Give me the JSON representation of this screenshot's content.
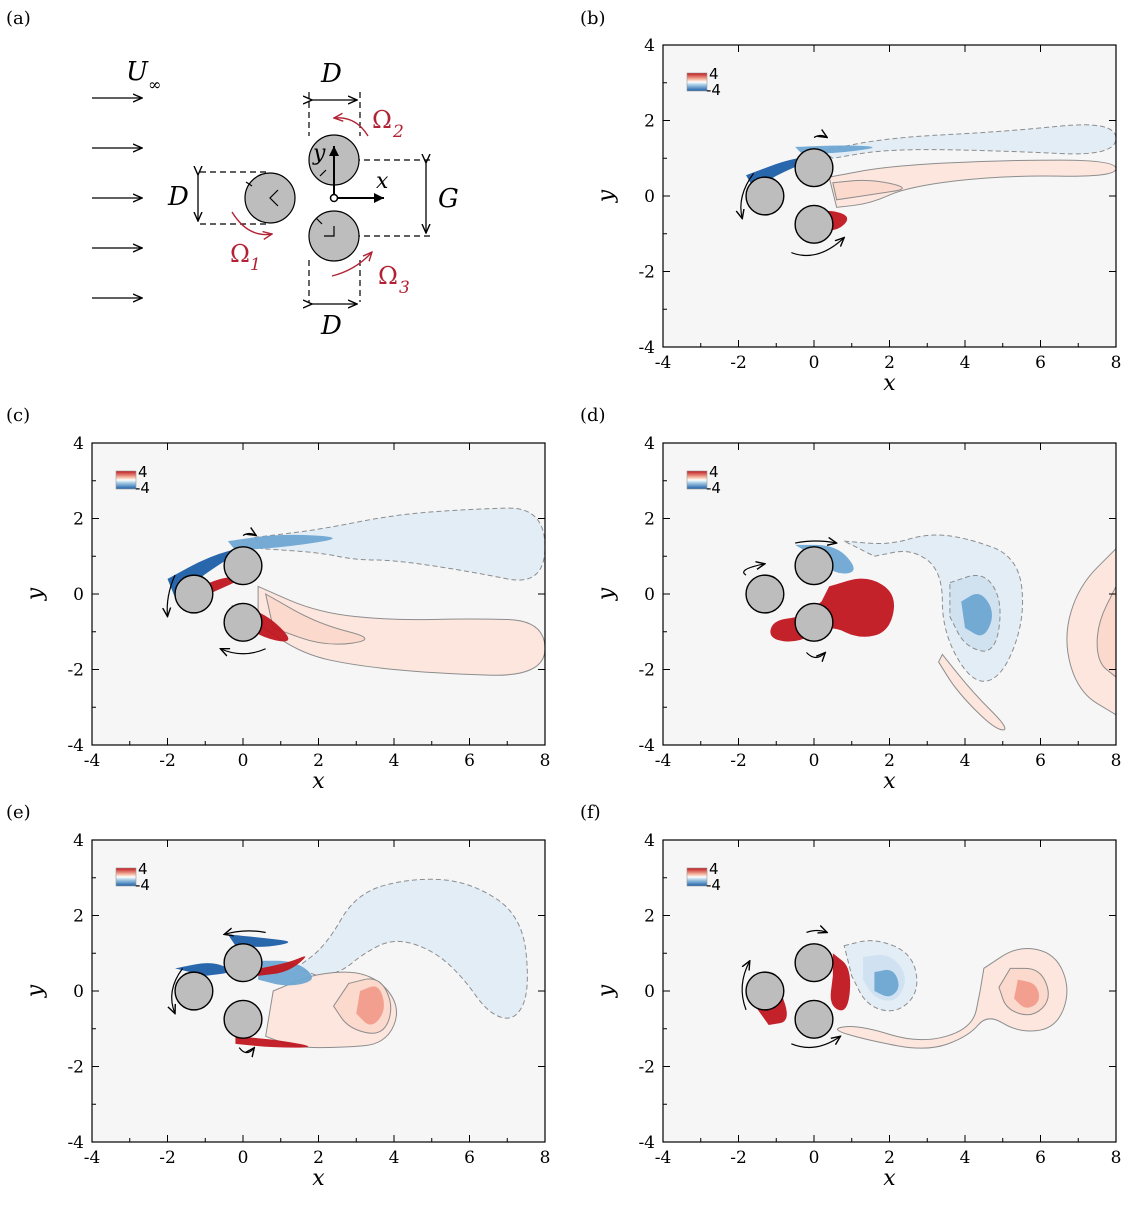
{
  "schematic": {
    "panel_label": "(a)",
    "freestream": "U",
    "freestream_sub": "∞",
    "diameter_label": "D",
    "gap_label": "G",
    "x_label": "x",
    "y_label": "y",
    "omega": "Ω",
    "omega_subs": [
      "1",
      "2",
      "3"
    ]
  },
  "plot_common": {
    "xlabel": "x",
    "ylabel": "y",
    "xticks": [
      "-4",
      "-2",
      "0",
      "2",
      "4",
      "6",
      "8"
    ],
    "yticks": [
      "4",
      "2",
      "0",
      "-2",
      "-4"
    ],
    "xlim": [
      -4,
      8
    ],
    "ylim": [
      -4,
      4
    ],
    "legend_max": "4",
    "legend_min": "-4",
    "colormap": {
      "positive": "#c0161f",
      "negative": "#1d5fa8",
      "background": "#f6f6f6"
    }
  },
  "panels": [
    {
      "label": "(b)"
    },
    {
      "label": "(c)"
    },
    {
      "label": "(d)"
    },
    {
      "label": "(e)"
    },
    {
      "label": "(f)"
    }
  ],
  "cylinders": [
    {
      "x": -1.3,
      "y": 0.0
    },
    {
      "x": 0.0,
      "y": 0.75
    },
    {
      "x": 0.0,
      "y": -0.75
    }
  ],
  "chart_data": {
    "type": "heatmap",
    "xlim": [
      -4,
      8
    ],
    "ylim": [
      -4,
      4
    ],
    "xlabel": "x",
    "ylabel": "y",
    "color_range": [
      -4,
      4
    ],
    "panels": [
      "(b)",
      "(c)",
      "(d)",
      "(e)",
      "(f)"
    ]
  }
}
